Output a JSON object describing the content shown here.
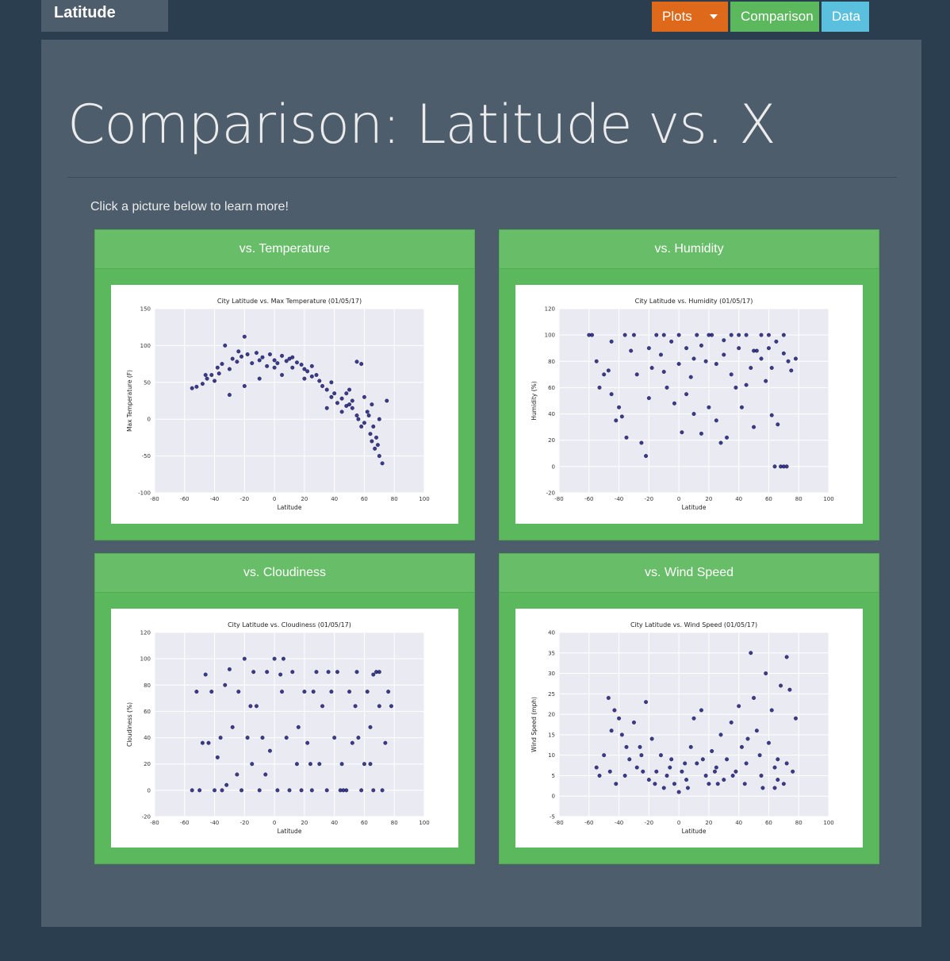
{
  "nav": {
    "brand": "Latitude",
    "plots_label": "Plots",
    "comparison_label": "Comparison",
    "data_label": "Data"
  },
  "page": {
    "title": "Comparison: Latitude vs. X",
    "intro": "Click a picture below to learn more!"
  },
  "colors": {
    "point": "#1a1a80",
    "plot_bg": "#eaeaf2",
    "grid": "#ffffff"
  },
  "cards": [
    {
      "heading": "vs. Temperature"
    },
    {
      "heading": "vs. Humidity"
    },
    {
      "heading": "vs. Cloudiness"
    },
    {
      "heading": "vs. Wind Speed"
    }
  ],
  "chart_data": [
    {
      "type": "scatter",
      "title": "City Latitude vs. Max Temperature (01/05/17)",
      "xlabel": "Latitude",
      "ylabel": "Max Temperature (F)",
      "xlim": [
        -80,
        100
      ],
      "ylim": [
        -100,
        150
      ],
      "xticks": [
        -80,
        -60,
        -40,
        -20,
        0,
        20,
        40,
        60,
        80,
        100
      ],
      "yticks": [
        -100,
        -50,
        0,
        50,
        100,
        150
      ],
      "grid": true,
      "points": [
        [
          -55,
          42
        ],
        [
          -52,
          44
        ],
        [
          -48,
          48
        ],
        [
          -45,
          55
        ],
        [
          -42,
          60
        ],
        [
          -40,
          52
        ],
        [
          -38,
          70
        ],
        [
          -35,
          75
        ],
        [
          -33,
          100
        ],
        [
          -30,
          68
        ],
        [
          -28,
          82
        ],
        [
          -25,
          78
        ],
        [
          -22,
          85
        ],
        [
          -20,
          112
        ],
        [
          -18,
          88
        ],
        [
          -15,
          76
        ],
        [
          -12,
          90
        ],
        [
          -10,
          80
        ],
        [
          -8,
          84
        ],
        [
          -5,
          72
        ],
        [
          -3,
          88
        ],
        [
          0,
          80
        ],
        [
          2,
          76
        ],
        [
          5,
          86
        ],
        [
          8,
          79
        ],
        [
          10,
          82
        ],
        [
          12,
          70
        ],
        [
          15,
          77
        ],
        [
          18,
          74
        ],
        [
          20,
          68
        ],
        [
          22,
          65
        ],
        [
          25,
          58
        ],
        [
          28,
          60
        ],
        [
          30,
          52
        ],
        [
          32,
          45
        ],
        [
          35,
          40
        ],
        [
          38,
          30
        ],
        [
          40,
          35
        ],
        [
          42,
          22
        ],
        [
          45,
          28
        ],
        [
          48,
          18
        ],
        [
          50,
          20
        ],
        [
          52,
          15
        ],
        [
          55,
          5
        ],
        [
          56,
          0
        ],
        [
          58,
          -10
        ],
        [
          60,
          -5
        ],
        [
          62,
          10
        ],
        [
          64,
          -20
        ],
        [
          65,
          -30
        ],
        [
          67,
          -40
        ],
        [
          68,
          -25
        ],
        [
          70,
          -50
        ],
        [
          72,
          -60
        ],
        [
          55,
          78
        ],
        [
          58,
          75
        ],
        [
          -46,
          60
        ],
        [
          -30,
          33
        ],
        [
          -10,
          55
        ],
        [
          5,
          60
        ],
        [
          20,
          55
        ],
        [
          35,
          15
        ],
        [
          45,
          10
        ],
        [
          50,
          40
        ],
        [
          60,
          30
        ],
        [
          65,
          20
        ],
        [
          70,
          0
        ],
        [
          75,
          25
        ],
        [
          -20,
          45
        ],
        [
          0,
          70
        ],
        [
          12,
          84
        ],
        [
          25,
          72
        ],
        [
          38,
          50
        ],
        [
          48,
          35
        ],
        [
          52,
          25
        ],
        [
          63,
          5
        ],
        [
          66,
          -10
        ],
        [
          69,
          -35
        ],
        [
          -37,
          62
        ],
        [
          -24,
          92
        ]
      ]
    },
    {
      "type": "scatter",
      "title": "City Latitude vs. Humidity (01/05/17)",
      "xlabel": "Latitude",
      "ylabel": "Humidity (%)",
      "xlim": [
        -80,
        100
      ],
      "ylim": [
        -20,
        120
      ],
      "xticks": [
        -80,
        -60,
        -40,
        -20,
        0,
        20,
        40,
        60,
        80,
        100
      ],
      "yticks": [
        -20,
        0,
        20,
        40,
        60,
        80,
        100,
        120
      ],
      "grid": true,
      "points": [
        [
          -55,
          80
        ],
        [
          -53,
          60
        ],
        [
          -50,
          70
        ],
        [
          -47,
          73
        ],
        [
          -45,
          55
        ],
        [
          -42,
          35
        ],
        [
          -40,
          45
        ],
        [
          -38,
          38
        ],
        [
          -35,
          22
        ],
        [
          -30,
          100
        ],
        [
          -28,
          70
        ],
        [
          -25,
          18
        ],
        [
          -22,
          8
        ],
        [
          -20,
          90
        ],
        [
          -18,
          75
        ],
        [
          -15,
          100
        ],
        [
          -12,
          85
        ],
        [
          -10,
          100
        ],
        [
          -8,
          60
        ],
        [
          -5,
          95
        ],
        [
          -3,
          48
        ],
        [
          0,
          100
        ],
        [
          2,
          26
        ],
        [
          5,
          90
        ],
        [
          8,
          68
        ],
        [
          10,
          40
        ],
        [
          12,
          100
        ],
        [
          15,
          25
        ],
        [
          18,
          80
        ],
        [
          20,
          45
        ],
        [
          22,
          100
        ],
        [
          25,
          35
        ],
        [
          28,
          18
        ],
        [
          30,
          85
        ],
        [
          32,
          22
        ],
        [
          35,
          100
        ],
        [
          38,
          60
        ],
        [
          40,
          90
        ],
        [
          42,
          45
        ],
        [
          45,
          100
        ],
        [
          48,
          75
        ],
        [
          50,
          30
        ],
        [
          52,
          88
        ],
        [
          55,
          100
        ],
        [
          58,
          65
        ],
        [
          60,
          90
        ],
        [
          62,
          39
        ],
        [
          64,
          0
        ],
        [
          66,
          32
        ],
        [
          68,
          0
        ],
        [
          70,
          0
        ],
        [
          72,
          0
        ],
        [
          73,
          80
        ],
        [
          75,
          73
        ],
        [
          78,
          82
        ],
        [
          -45,
          95
        ],
        [
          -32,
          88
        ],
        [
          -10,
          72
        ],
        [
          5,
          55
        ],
        [
          15,
          92
        ],
        [
          25,
          78
        ],
        [
          35,
          70
        ],
        [
          45,
          62
        ],
        [
          55,
          82
        ],
        [
          65,
          95
        ],
        [
          70,
          86
        ],
        [
          -60,
          100
        ],
        [
          -58,
          100
        ],
        [
          -36,
          100
        ],
        [
          0,
          78
        ],
        [
          20,
          100
        ],
        [
          40,
          100
        ],
        [
          60,
          100
        ],
        [
          70,
          100
        ],
        [
          -20,
          52
        ],
        [
          10,
          82
        ],
        [
          30,
          96
        ],
        [
          50,
          88
        ],
        [
          62,
          75
        ]
      ]
    },
    {
      "type": "scatter",
      "title": "City Latitude vs. Cloudiness (01/05/17)",
      "xlabel": "Latitude",
      "ylabel": "Cloudiness (%)",
      "xlim": [
        -80,
        100
      ],
      "ylim": [
        -20,
        120
      ],
      "xticks": [
        -80,
        -60,
        -40,
        -20,
        0,
        20,
        40,
        60,
        80,
        100
      ],
      "yticks": [
        -20,
        0,
        20,
        40,
        60,
        80,
        100,
        120
      ],
      "grid": true,
      "points": [
        [
          -55,
          0
        ],
        [
          -52,
          75
        ],
        [
          -48,
          36
        ],
        [
          -46,
          88
        ],
        [
          -44,
          36
        ],
        [
          -42,
          75
        ],
        [
          -40,
          0
        ],
        [
          -38,
          25
        ],
        [
          -35,
          0
        ],
        [
          -33,
          80
        ],
        [
          -30,
          92
        ],
        [
          -28,
          48
        ],
        [
          -25,
          12
        ],
        [
          -22,
          0
        ],
        [
          -20,
          100
        ],
        [
          -18,
          40
        ],
        [
          -15,
          20
        ],
        [
          -12,
          64
        ],
        [
          -10,
          0
        ],
        [
          -8,
          40
        ],
        [
          -5,
          90
        ],
        [
          -3,
          30
        ],
        [
          0,
          100
        ],
        [
          2,
          0
        ],
        [
          5,
          75
        ],
        [
          8,
          40
        ],
        [
          10,
          0
        ],
        [
          12,
          90
        ],
        [
          15,
          20
        ],
        [
          18,
          0
        ],
        [
          20,
          75
        ],
        [
          22,
          36
        ],
        [
          25,
          0
        ],
        [
          28,
          90
        ],
        [
          30,
          20
        ],
        [
          32,
          64
        ],
        [
          35,
          0
        ],
        [
          38,
          75
        ],
        [
          40,
          40
        ],
        [
          42,
          90
        ],
        [
          45,
          20
        ],
        [
          48,
          0
        ],
        [
          50,
          75
        ],
        [
          52,
          36
        ],
        [
          55,
          90
        ],
        [
          58,
          0
        ],
        [
          60,
          20
        ],
        [
          62,
          75
        ],
        [
          64,
          48
        ],
        [
          66,
          0
        ],
        [
          68,
          90
        ],
        [
          70,
          64
        ],
        [
          72,
          0
        ],
        [
          74,
          36
        ],
        [
          76,
          75
        ],
        [
          78,
          64
        ],
        [
          -50,
          0
        ],
        [
          -36,
          40
        ],
        [
          -24,
          75
        ],
        [
          -14,
          90
        ],
        [
          -6,
          12
        ],
        [
          6,
          100
        ],
        [
          16,
          48
        ],
        [
          26,
          75
        ],
        [
          36,
          90
        ],
        [
          46,
          0
        ],
        [
          56,
          40
        ],
        [
          66,
          88
        ],
        [
          -32,
          4
        ],
        [
          -16,
          64
        ],
        [
          4,
          88
        ],
        [
          24,
          20
        ],
        [
          44,
          0
        ],
        [
          54,
          64
        ],
        [
          64,
          20
        ],
        [
          70,
          90
        ]
      ]
    },
    {
      "type": "scatter",
      "title": "City Latitude vs. Wind Speed (01/05/17)",
      "xlabel": "Latitude",
      "ylabel": "Wind Speed (mph)",
      "xlim": [
        -80,
        100
      ],
      "ylim": [
        -5,
        40
      ],
      "xticks": [
        -80,
        -60,
        -40,
        -20,
        0,
        20,
        40,
        60,
        80,
        100
      ],
      "yticks": [
        -5,
        0,
        5,
        10,
        15,
        20,
        25,
        30,
        35,
        40
      ],
      "grid": true,
      "points": [
        [
          -55,
          7
        ],
        [
          -53,
          5
        ],
        [
          -50,
          10
        ],
        [
          -47,
          24
        ],
        [
          -45,
          16
        ],
        [
          -43,
          21
        ],
        [
          -40,
          19
        ],
        [
          -38,
          15
        ],
        [
          -35,
          12
        ],
        [
          -33,
          9
        ],
        [
          -30,
          18
        ],
        [
          -28,
          7
        ],
        [
          -25,
          10
        ],
        [
          -22,
          23
        ],
        [
          -20,
          4
        ],
        [
          -18,
          14
        ],
        [
          -15,
          6
        ],
        [
          -12,
          10
        ],
        [
          -10,
          2
        ],
        [
          -8,
          5
        ],
        [
          -5,
          9
        ],
        [
          -3,
          3
        ],
        [
          0,
          1
        ],
        [
          2,
          6
        ],
        [
          5,
          4
        ],
        [
          8,
          12
        ],
        [
          10,
          19
        ],
        [
          12,
          8
        ],
        [
          15,
          21
        ],
        [
          18,
          5
        ],
        [
          20,
          3
        ],
        [
          22,
          11
        ],
        [
          25,
          7
        ],
        [
          28,
          15
        ],
        [
          30,
          4
        ],
        [
          32,
          9
        ],
        [
          35,
          18
        ],
        [
          38,
          6
        ],
        [
          40,
          22
        ],
        [
          42,
          12
        ],
        [
          45,
          8
        ],
        [
          48,
          35
        ],
        [
          50,
          24
        ],
        [
          52,
          16
        ],
        [
          55,
          5
        ],
        [
          58,
          30
        ],
        [
          60,
          13
        ],
        [
          62,
          21
        ],
        [
          64,
          7
        ],
        [
          66,
          9
        ],
        [
          68,
          27
        ],
        [
          70,
          3
        ],
        [
          72,
          34
        ],
        [
          74,
          26
        ],
        [
          76,
          6
        ],
        [
          78,
          19
        ],
        [
          -46,
          6
        ],
        [
          -36,
          5
        ],
        [
          -26,
          12
        ],
        [
          -16,
          3
        ],
        [
          -6,
          7
        ],
        [
          6,
          2
        ],
        [
          16,
          9
        ],
        [
          26,
          3
        ],
        [
          36,
          5
        ],
        [
          46,
          14
        ],
        [
          56,
          2
        ],
        [
          66,
          4
        ],
        [
          -42,
          3
        ],
        [
          -24,
          6
        ],
        [
          4,
          8
        ],
        [
          24,
          6
        ],
        [
          44,
          3
        ],
        [
          54,
          10
        ],
        [
          64,
          2
        ],
        [
          72,
          8
        ]
      ]
    }
  ]
}
